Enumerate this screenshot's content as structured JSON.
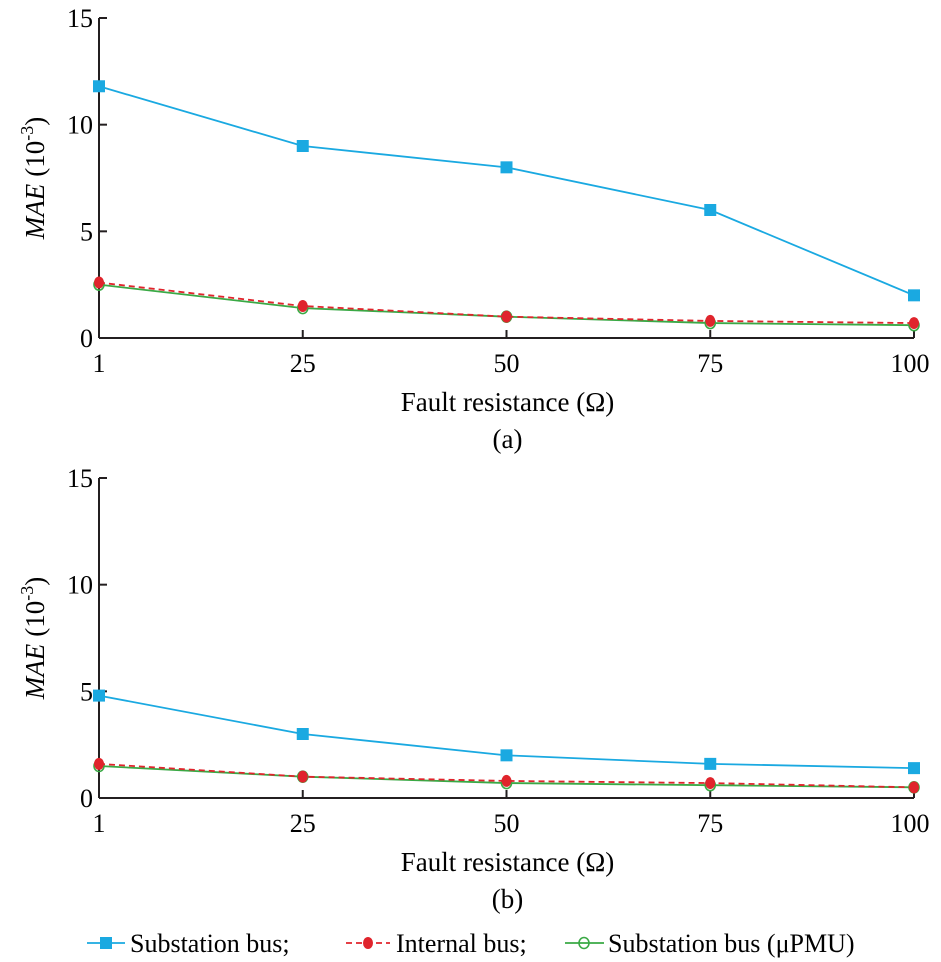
{
  "colors": {
    "substation": "#1aa9e1",
    "internal": "#e0242c",
    "upmu": "#3aa945",
    "axis": "#231f20"
  },
  "legend": {
    "substation_label": "Substation bus;",
    "internal_label": "Internal bus;",
    "upmu_label": "Substation bus (μPMU)"
  },
  "chart_data": [
    {
      "type": "line",
      "panel_label": "(a)",
      "xlabel": "Fault resistance (Ω)",
      "ylabel_main": "MAE",
      "ylabel_unit": "(10",
      "ylabel_exp": "-3",
      "ylabel_close": ")",
      "categories": [
        "1",
        "25",
        "50",
        "75",
        "100"
      ],
      "yticks": [
        "0",
        "5",
        "10",
        "15"
      ],
      "ylim": [
        0,
        15
      ],
      "series": [
        {
          "name": "Substation bus",
          "key": "substation",
          "values": [
            11.8,
            9.0,
            8.0,
            6.0,
            2.0
          ]
        },
        {
          "name": "Internal bus",
          "key": "internal",
          "values": [
            2.6,
            1.5,
            1.0,
            0.8,
            0.7
          ]
        },
        {
          "name": "Substation bus (μPMU)",
          "key": "upmu",
          "values": [
            2.5,
            1.4,
            1.0,
            0.7,
            0.6
          ]
        }
      ]
    },
    {
      "type": "line",
      "panel_label": "(b)",
      "xlabel": "Fault resistance (Ω)",
      "ylabel_main": "MAE",
      "ylabel_unit": "(10",
      "ylabel_exp": "-3",
      "ylabel_close": ")",
      "categories": [
        "1",
        "25",
        "50",
        "75",
        "100"
      ],
      "yticks": [
        "0",
        "5",
        "10",
        "15"
      ],
      "ylim": [
        0,
        15
      ],
      "series": [
        {
          "name": "Substation bus",
          "key": "substation",
          "values": [
            4.8,
            3.0,
            2.0,
            1.6,
            1.4
          ]
        },
        {
          "name": "Internal bus",
          "key": "internal",
          "values": [
            1.6,
            1.0,
            0.8,
            0.7,
            0.5
          ]
        },
        {
          "name": "Substation bus (μPMU)",
          "key": "upmu",
          "values": [
            1.5,
            1.0,
            0.7,
            0.6,
            0.5
          ]
        }
      ]
    }
  ]
}
